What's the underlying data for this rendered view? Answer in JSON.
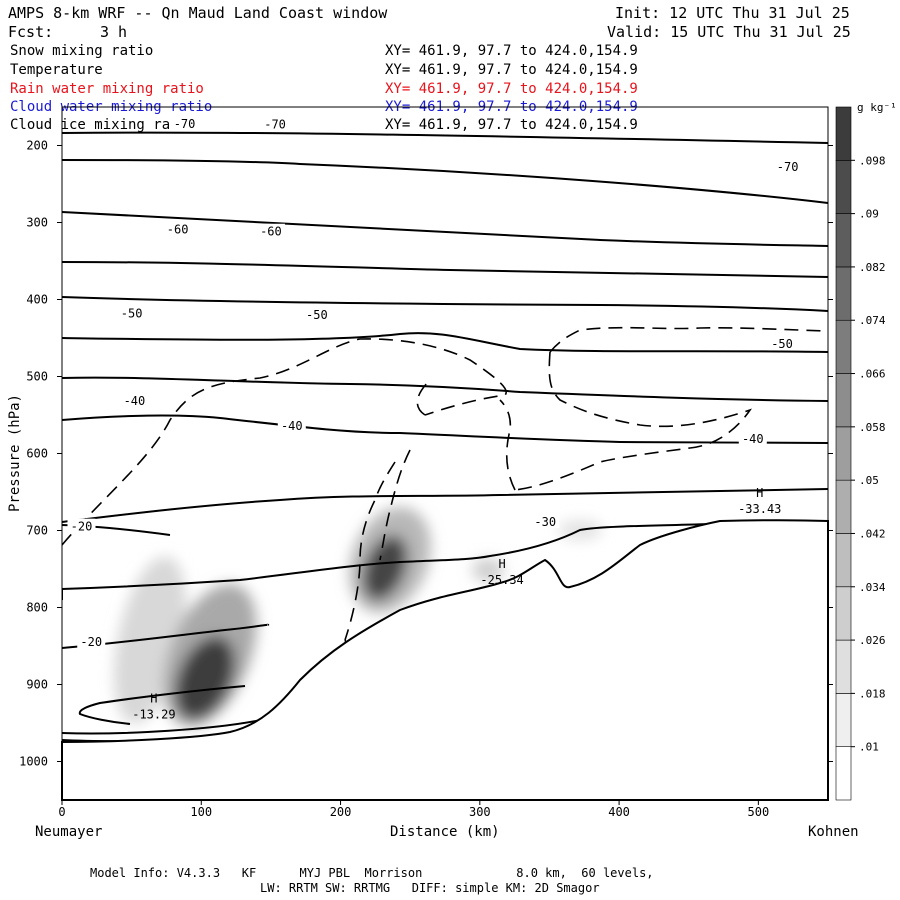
{
  "header": {
    "title": "AMPS 8-km WRF -- Qn Maud Land Coast window",
    "init": "Init: 12 UTC Thu 31 Jul 25",
    "fcst_label": "Fcst:",
    "fcst_value": "3 h",
    "valid": "Valid: 15 UTC Thu 31 Jul 25"
  },
  "fields": [
    {
      "name": "Snow mixing ratio",
      "xy": "XY= 461.9, 97.7 to 424.0,154.9",
      "color": "#000000"
    },
    {
      "name": "Temperature",
      "xy": "XY= 461.9, 97.7 to 424.0,154.9",
      "color": "#000000"
    },
    {
      "name": "Rain water mixing ratio",
      "xy": "XY= 461.9, 97.7 to 424.0,154.9",
      "color": "#e8141c"
    },
    {
      "name": "Cloud water mixing ratio",
      "xy": "XY= 461.9, 97.7 to 424.0,154.9",
      "color": "#1a1ad6"
    },
    {
      "name": "Cloud ice mixing ratio",
      "xy": "XY= 461.9, 97.7 to 424.0,154.9",
      "color": "#000000"
    }
  ],
  "colorbar": {
    "unit": "g kg⁻¹",
    "ticks": [
      ".01",
      ".018",
      ".026",
      ".034",
      ".042",
      ".05",
      ".058",
      ".066",
      ".074",
      ".082",
      ".09",
      ".098"
    ]
  },
  "chart_data": {
    "type": "contour-cross-section",
    "xlabel": "Distance (km)",
    "ylabel": "Pressure (hPa)",
    "x_left_label": "Neumayer",
    "x_right_label": "Kohnen",
    "xlim": [
      0,
      550
    ],
    "ylim": [
      1050,
      150
    ],
    "x_ticks": [
      0,
      100,
      200,
      300,
      400,
      500
    ],
    "y_ticks": [
      200,
      300,
      400,
      500,
      600,
      700,
      800,
      900,
      1000
    ],
    "temperature_labels": [
      {
        "text": "-70",
        "x": 88,
        "p": 172
      },
      {
        "text": "-70",
        "x": 153,
        "p": 173
      },
      {
        "text": "-70",
        "x": 521,
        "p": 228
      },
      {
        "text": "-60",
        "x": 83,
        "p": 309
      },
      {
        "text": "-60",
        "x": 150,
        "p": 312
      },
      {
        "text": "-50",
        "x": 50,
        "p": 418
      },
      {
        "text": "-50",
        "x": 183,
        "p": 420
      },
      {
        "text": "-50",
        "x": 517,
        "p": 458
      },
      {
        "text": "-40",
        "x": 52,
        "p": 532
      },
      {
        "text": "-40",
        "x": 165,
        "p": 564
      },
      {
        "text": "-40",
        "x": 496,
        "p": 581
      },
      {
        "text": "-30",
        "x": 347,
        "p": 689
      },
      {
        "text": "-20",
        "x": 14,
        "p": 695
      },
      {
        "text": "-20",
        "x": 21,
        "p": 845
      }
    ],
    "extrema": [
      {
        "type": "H",
        "value": "-13.29",
        "x": 66,
        "p": 934
      },
      {
        "type": "H",
        "value": "-25.34",
        "x": 316,
        "p": 759
      },
      {
        "type": "H",
        "value": "-33.43",
        "x": 501,
        "p": 667
      }
    ],
    "shading_maxima": [
      {
        "x": 100,
        "p": 885,
        "value": 0.098
      },
      {
        "x": 235,
        "p": 750,
        "value": 0.09
      },
      {
        "x": 305,
        "p": 737,
        "value": 0.026
      },
      {
        "x": 370,
        "p": 700,
        "value": 0.018
      }
    ]
  },
  "footer": {
    "line1": "Model Info: V4.3.3   KF      MYJ PBL  Morrison             8.0 km,  60 levels,",
    "line2": "LW: RRTM SW: RRTMG   DIFF: simple KM: 2D Smagor"
  }
}
